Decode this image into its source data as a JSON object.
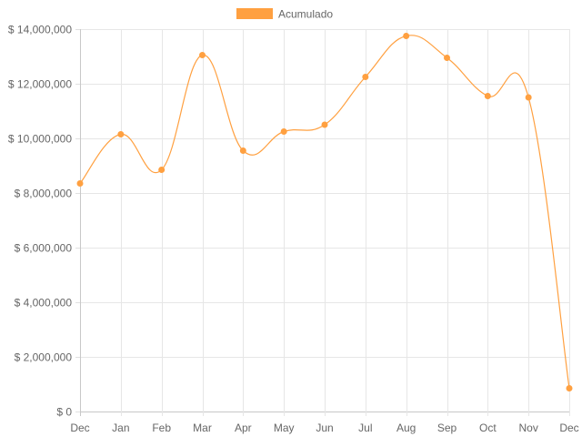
{
  "chart_data": {
    "type": "line",
    "categories": [
      "Dec",
      "Jan",
      "Feb",
      "Mar",
      "Apr",
      "May",
      "Jun",
      "Jul",
      "Aug",
      "Sep",
      "Oct",
      "Nov",
      "Dec"
    ],
    "series": [
      {
        "name": "Acumulado",
        "color": "#ffa040",
        "values": [
          8350000,
          10150000,
          8850000,
          13050000,
          9550000,
          10250000,
          10500000,
          12250000,
          13750000,
          12950000,
          11550000,
          11500000,
          850000
        ]
      }
    ],
    "yticks": [
      "$ 0",
      "$ 2,000,000",
      "$ 4,000,000",
      "$ 6,000,000",
      "$ 8,000,000",
      "$ 10,000,000",
      "$ 12,000,000",
      "$ 14,000,000"
    ],
    "ylim": [
      0,
      14000000
    ],
    "grid": true,
    "legend": "top-center",
    "curve": "smooth"
  }
}
